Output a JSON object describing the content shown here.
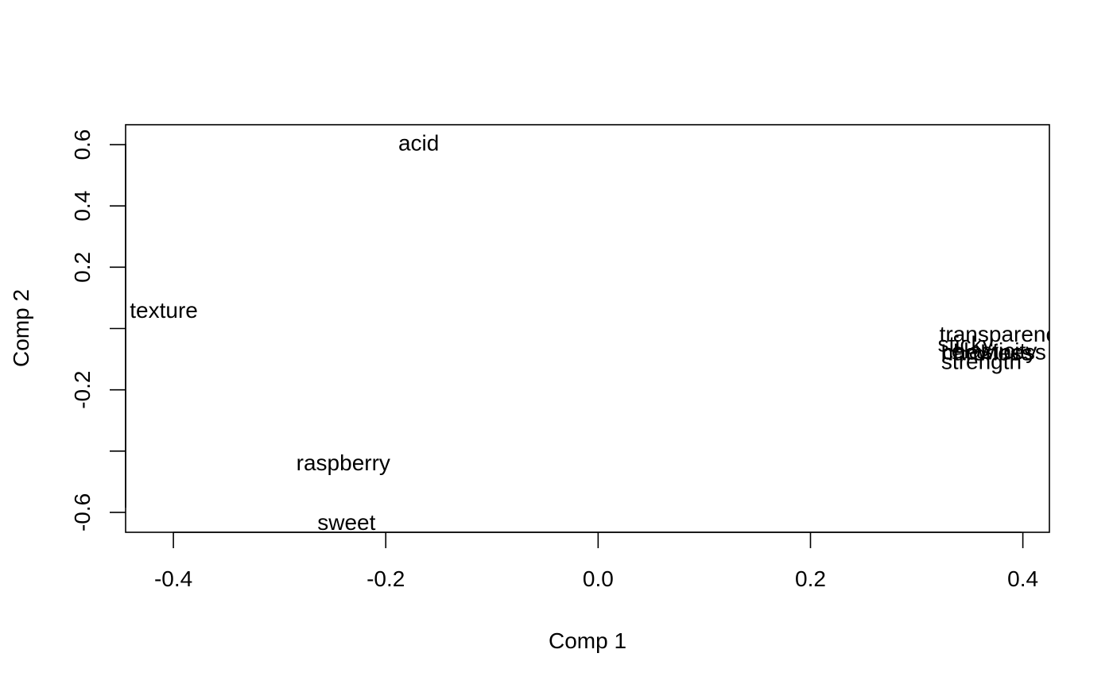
{
  "chart_data": {
    "type": "scatter",
    "title": "",
    "xlabel": "Comp 1",
    "ylabel": "Comp 2",
    "xlim": [
      -0.445,
      0.425
    ],
    "ylim": [
      -0.665,
      0.665
    ],
    "xticks": [
      -0.4,
      -0.2,
      0.0,
      0.2,
      0.4
    ],
    "xtick_labels": [
      "-0.4",
      "-0.2",
      "0.0",
      "0.2",
      "0.4"
    ],
    "yticks": [
      -0.6,
      -0.4,
      -0.2,
      0.0,
      0.2,
      0.4,
      0.6
    ],
    "ytick_labels": [
      "-0.6",
      "",
      "-0.2",
      "",
      "0.2",
      "0.4",
      "0.6"
    ],
    "grid": false,
    "points": [
      {
        "label": "acid",
        "x": -0.169,
        "y": 0.605
      },
      {
        "label": "texture",
        "x": -0.409,
        "y": 0.06
      },
      {
        "label": "transparency",
        "x": 0.382,
        "y": -0.018
      },
      {
        "label": "sticky",
        "x": 0.346,
        "y": -0.05
      },
      {
        "label": "elasticity",
        "x": 0.373,
        "y": -0.073
      },
      {
        "label": "chewiness",
        "x": 0.373,
        "y": -0.076
      },
      {
        "label": "hardness",
        "x": 0.366,
        "y": -0.079
      },
      {
        "label": "strength",
        "x": 0.361,
        "y": -0.107
      },
      {
        "label": "raspberry",
        "x": -0.24,
        "y": -0.438
      },
      {
        "label": "sweet",
        "x": -0.237,
        "y": -0.633
      }
    ]
  }
}
